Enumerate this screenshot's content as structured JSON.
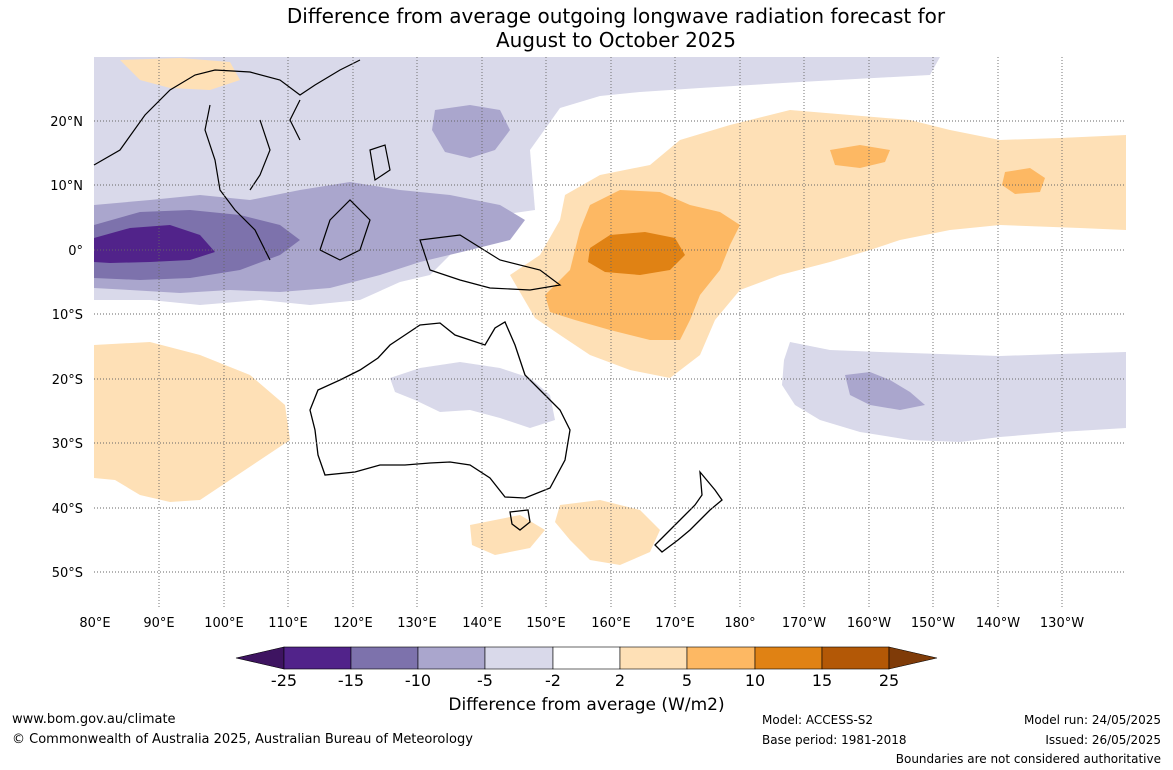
{
  "title_line1": "Difference from average outgoing longwave radiation forecast for",
  "title_line2": "August to October 2025",
  "lat_labels": [
    "20°N",
    "10°N",
    "0°",
    "10°S",
    "20°S",
    "30°S",
    "40°S",
    "50°S"
  ],
  "lon_labels": [
    "80°E",
    "90°E",
    "100°E",
    "110°E",
    "120°E",
    "130°E",
    "140°E",
    "150°E",
    "160°E",
    "170°E",
    "180°",
    "170°W",
    "160°W",
    "150°W",
    "140°W",
    "130°W"
  ],
  "colorbar": {
    "ticks": [
      "-25",
      "-15",
      "-10",
      "-5",
      "-2",
      "2",
      "5",
      "10",
      "15",
      "25"
    ],
    "colors": [
      "#3e1461",
      "#51238a",
      "#7d72ac",
      "#aaa6cd",
      "#d9d9ea",
      "#ffffff",
      "#fee0b6",
      "#fdb863",
      "#e08214",
      "#b35806",
      "#7f3b08"
    ],
    "label": "Difference from average (W/m2)"
  },
  "footer": {
    "url": "www.bom.gov.au/climate",
    "copyright": "© Commonwealth of Australia 2025, Australian Bureau of Meteorology",
    "model": "Model: ACCESS-S2",
    "base_period": "Base period: 1981-2018",
    "model_run": "Model run: 24/05/2025",
    "issued": "Issued: 26/05/2025",
    "disclaimer": "Boundaries are not considered authoritative"
  }
}
